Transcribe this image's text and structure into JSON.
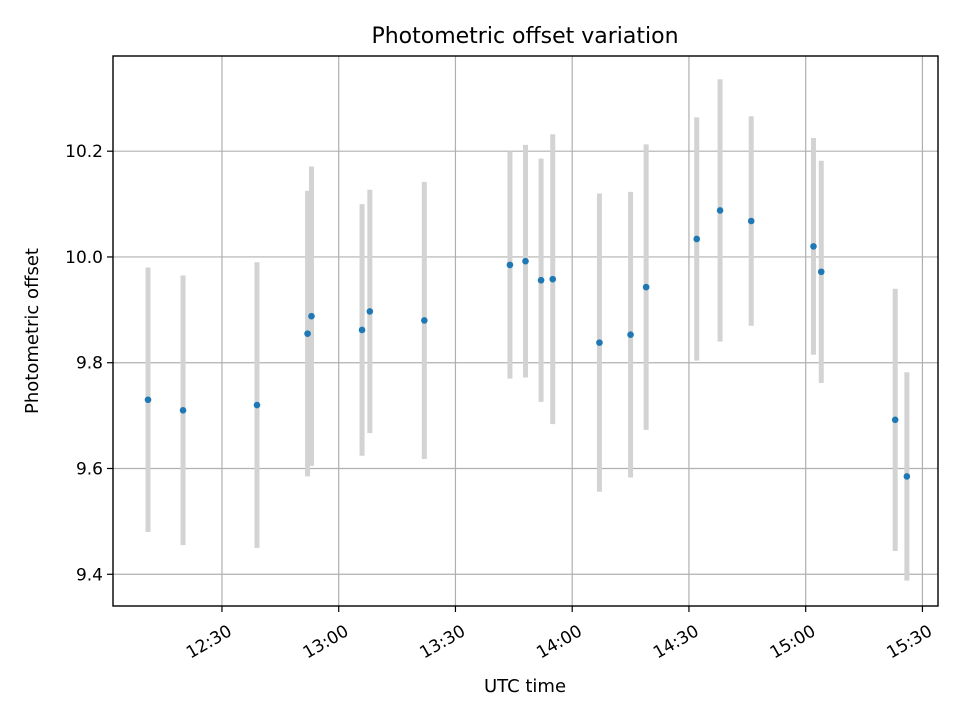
{
  "chart_data": {
    "type": "scatter",
    "title": "Photometric offset variation",
    "xlabel": "UTC time",
    "ylabel": "Photometric offset",
    "x_axis": {
      "kind": "time",
      "range": [
        "12:02",
        "15:34"
      ],
      "ticks": [
        "12:30",
        "13:00",
        "13:30",
        "14:00",
        "14:30",
        "15:00",
        "15:30"
      ]
    },
    "y_axis": {
      "range": [
        9.34,
        10.38
      ],
      "ticks": [
        9.4,
        9.6,
        9.8,
        10.0,
        10.2
      ],
      "tick_labels": [
        "9.4",
        "9.6",
        "9.8",
        "10.0",
        "10.2"
      ]
    },
    "grid": true,
    "colors": {
      "point": "#1f77b4",
      "errorbar": "#d3d3d3",
      "grid": "#b0b0b0"
    },
    "series": [
      {
        "points": [
          {
            "t": "12:11",
            "y": 9.73,
            "err": 0.25
          },
          {
            "t": "12:20",
            "y": 9.71,
            "err": 0.255
          },
          {
            "t": "12:39",
            "y": 9.72,
            "err": 0.27
          },
          {
            "t": "12:52",
            "y": 9.855,
            "err": 0.27
          },
          {
            "t": "12:53",
            "y": 9.888,
            "err": 0.283
          },
          {
            "t": "13:06",
            "y": 9.862,
            "err": 0.238
          },
          {
            "t": "13:08",
            "y": 9.897,
            "err": 0.23
          },
          {
            "t": "13:22",
            "y": 9.88,
            "err": 0.262
          },
          {
            "t": "13:44",
            "y": 9.985,
            "err": 0.215
          },
          {
            "t": "13:48",
            "y": 9.992,
            "err": 0.22
          },
          {
            "t": "13:52",
            "y": 9.956,
            "err": 0.23
          },
          {
            "t": "13:55",
            "y": 9.958,
            "err": 0.274
          },
          {
            "t": "14:07",
            "y": 9.838,
            "err": 0.282
          },
          {
            "t": "14:15",
            "y": 9.853,
            "err": 0.27
          },
          {
            "t": "14:19",
            "y": 9.943,
            "err": 0.27
          },
          {
            "t": "14:32",
            "y": 10.034,
            "err": 0.23
          },
          {
            "t": "14:38",
            "y": 10.088,
            "err": 0.248
          },
          {
            "t": "14:46",
            "y": 10.068,
            "err": 0.198
          },
          {
            "t": "15:02",
            "y": 10.02,
            "err": 0.205
          },
          {
            "t": "15:04",
            "y": 9.972,
            "err": 0.21
          },
          {
            "t": "15:23",
            "y": 9.692,
            "err": 0.248
          },
          {
            "t": "15:26",
            "y": 9.585,
            "err": 0.197
          }
        ]
      }
    ]
  }
}
